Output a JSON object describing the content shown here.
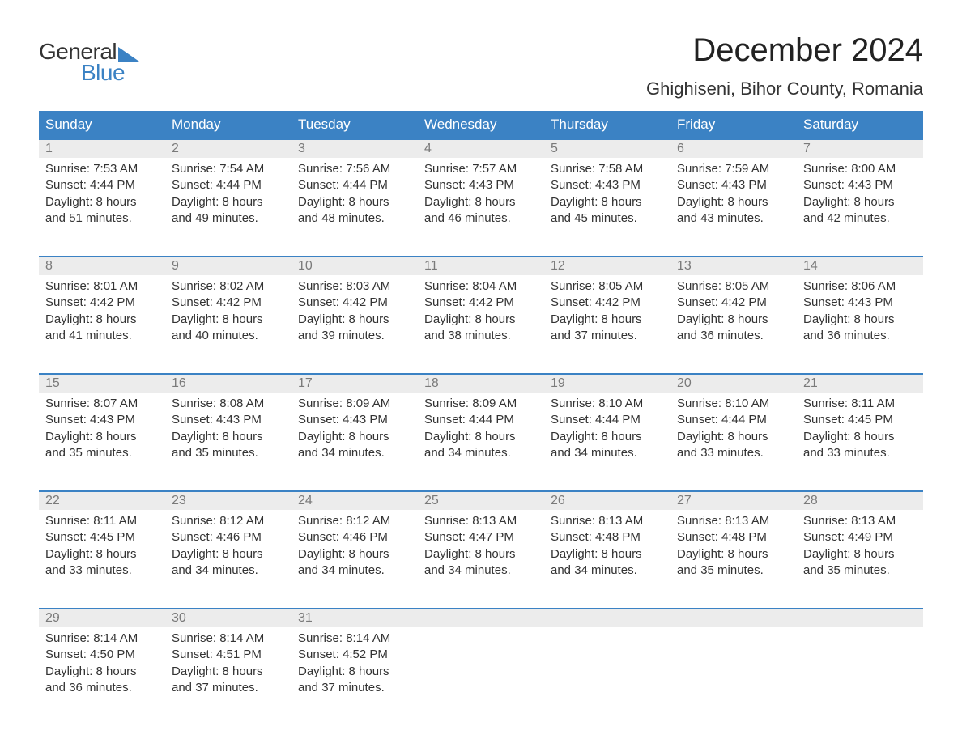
{
  "logo": {
    "text1": "General",
    "text2": "Blue"
  },
  "title": "December 2024",
  "location": "Ghighiseni, Bihor County, Romania",
  "colors": {
    "header_bg": "#3b82c4",
    "header_text": "#ffffff",
    "row_border": "#3b82c4",
    "date_bg": "#ececec",
    "date_text": "#7a7a7a",
    "body_text": "#333333",
    "background": "#ffffff"
  },
  "typography": {
    "title_fontsize": 40,
    "location_fontsize": 22,
    "dayheader_fontsize": 17,
    "date_fontsize": 16,
    "info_fontsize": 15
  },
  "day_names": [
    "Sunday",
    "Monday",
    "Tuesday",
    "Wednesday",
    "Thursday",
    "Friday",
    "Saturday"
  ],
  "weeks": [
    [
      {
        "date": "1",
        "sunrise": "Sunrise: 7:53 AM",
        "sunset": "Sunset: 4:44 PM",
        "d1": "Daylight: 8 hours",
        "d2": "and 51 minutes."
      },
      {
        "date": "2",
        "sunrise": "Sunrise: 7:54 AM",
        "sunset": "Sunset: 4:44 PM",
        "d1": "Daylight: 8 hours",
        "d2": "and 49 minutes."
      },
      {
        "date": "3",
        "sunrise": "Sunrise: 7:56 AM",
        "sunset": "Sunset: 4:44 PM",
        "d1": "Daylight: 8 hours",
        "d2": "and 48 minutes."
      },
      {
        "date": "4",
        "sunrise": "Sunrise: 7:57 AM",
        "sunset": "Sunset: 4:43 PM",
        "d1": "Daylight: 8 hours",
        "d2": "and 46 minutes."
      },
      {
        "date": "5",
        "sunrise": "Sunrise: 7:58 AM",
        "sunset": "Sunset: 4:43 PM",
        "d1": "Daylight: 8 hours",
        "d2": "and 45 minutes."
      },
      {
        "date": "6",
        "sunrise": "Sunrise: 7:59 AM",
        "sunset": "Sunset: 4:43 PM",
        "d1": "Daylight: 8 hours",
        "d2": "and 43 minutes."
      },
      {
        "date": "7",
        "sunrise": "Sunrise: 8:00 AM",
        "sunset": "Sunset: 4:43 PM",
        "d1": "Daylight: 8 hours",
        "d2": "and 42 minutes."
      }
    ],
    [
      {
        "date": "8",
        "sunrise": "Sunrise: 8:01 AM",
        "sunset": "Sunset: 4:42 PM",
        "d1": "Daylight: 8 hours",
        "d2": "and 41 minutes."
      },
      {
        "date": "9",
        "sunrise": "Sunrise: 8:02 AM",
        "sunset": "Sunset: 4:42 PM",
        "d1": "Daylight: 8 hours",
        "d2": "and 40 minutes."
      },
      {
        "date": "10",
        "sunrise": "Sunrise: 8:03 AM",
        "sunset": "Sunset: 4:42 PM",
        "d1": "Daylight: 8 hours",
        "d2": "and 39 minutes."
      },
      {
        "date": "11",
        "sunrise": "Sunrise: 8:04 AM",
        "sunset": "Sunset: 4:42 PM",
        "d1": "Daylight: 8 hours",
        "d2": "and 38 minutes."
      },
      {
        "date": "12",
        "sunrise": "Sunrise: 8:05 AM",
        "sunset": "Sunset: 4:42 PM",
        "d1": "Daylight: 8 hours",
        "d2": "and 37 minutes."
      },
      {
        "date": "13",
        "sunrise": "Sunrise: 8:05 AM",
        "sunset": "Sunset: 4:42 PM",
        "d1": "Daylight: 8 hours",
        "d2": "and 36 minutes."
      },
      {
        "date": "14",
        "sunrise": "Sunrise: 8:06 AM",
        "sunset": "Sunset: 4:43 PM",
        "d1": "Daylight: 8 hours",
        "d2": "and 36 minutes."
      }
    ],
    [
      {
        "date": "15",
        "sunrise": "Sunrise: 8:07 AM",
        "sunset": "Sunset: 4:43 PM",
        "d1": "Daylight: 8 hours",
        "d2": "and 35 minutes."
      },
      {
        "date": "16",
        "sunrise": "Sunrise: 8:08 AM",
        "sunset": "Sunset: 4:43 PM",
        "d1": "Daylight: 8 hours",
        "d2": "and 35 minutes."
      },
      {
        "date": "17",
        "sunrise": "Sunrise: 8:09 AM",
        "sunset": "Sunset: 4:43 PM",
        "d1": "Daylight: 8 hours",
        "d2": "and 34 minutes."
      },
      {
        "date": "18",
        "sunrise": "Sunrise: 8:09 AM",
        "sunset": "Sunset: 4:44 PM",
        "d1": "Daylight: 8 hours",
        "d2": "and 34 minutes."
      },
      {
        "date": "19",
        "sunrise": "Sunrise: 8:10 AM",
        "sunset": "Sunset: 4:44 PM",
        "d1": "Daylight: 8 hours",
        "d2": "and 34 minutes."
      },
      {
        "date": "20",
        "sunrise": "Sunrise: 8:10 AM",
        "sunset": "Sunset: 4:44 PM",
        "d1": "Daylight: 8 hours",
        "d2": "and 33 minutes."
      },
      {
        "date": "21",
        "sunrise": "Sunrise: 8:11 AM",
        "sunset": "Sunset: 4:45 PM",
        "d1": "Daylight: 8 hours",
        "d2": "and 33 minutes."
      }
    ],
    [
      {
        "date": "22",
        "sunrise": "Sunrise: 8:11 AM",
        "sunset": "Sunset: 4:45 PM",
        "d1": "Daylight: 8 hours",
        "d2": "and 33 minutes."
      },
      {
        "date": "23",
        "sunrise": "Sunrise: 8:12 AM",
        "sunset": "Sunset: 4:46 PM",
        "d1": "Daylight: 8 hours",
        "d2": "and 34 minutes."
      },
      {
        "date": "24",
        "sunrise": "Sunrise: 8:12 AM",
        "sunset": "Sunset: 4:46 PM",
        "d1": "Daylight: 8 hours",
        "d2": "and 34 minutes."
      },
      {
        "date": "25",
        "sunrise": "Sunrise: 8:13 AM",
        "sunset": "Sunset: 4:47 PM",
        "d1": "Daylight: 8 hours",
        "d2": "and 34 minutes."
      },
      {
        "date": "26",
        "sunrise": "Sunrise: 8:13 AM",
        "sunset": "Sunset: 4:48 PM",
        "d1": "Daylight: 8 hours",
        "d2": "and 34 minutes."
      },
      {
        "date": "27",
        "sunrise": "Sunrise: 8:13 AM",
        "sunset": "Sunset: 4:48 PM",
        "d1": "Daylight: 8 hours",
        "d2": "and 35 minutes."
      },
      {
        "date": "28",
        "sunrise": "Sunrise: 8:13 AM",
        "sunset": "Sunset: 4:49 PM",
        "d1": "Daylight: 8 hours",
        "d2": "and 35 minutes."
      }
    ],
    [
      {
        "date": "29",
        "sunrise": "Sunrise: 8:14 AM",
        "sunset": "Sunset: 4:50 PM",
        "d1": "Daylight: 8 hours",
        "d2": "and 36 minutes."
      },
      {
        "date": "30",
        "sunrise": "Sunrise: 8:14 AM",
        "sunset": "Sunset: 4:51 PM",
        "d1": "Daylight: 8 hours",
        "d2": "and 37 minutes."
      },
      {
        "date": "31",
        "sunrise": "Sunrise: 8:14 AM",
        "sunset": "Sunset: 4:52 PM",
        "d1": "Daylight: 8 hours",
        "d2": "and 37 minutes."
      },
      null,
      null,
      null,
      null
    ]
  ]
}
